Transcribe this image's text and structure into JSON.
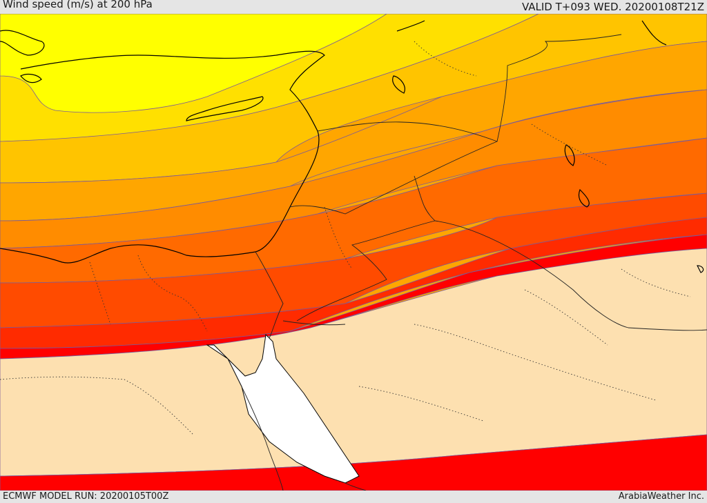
{
  "header": {
    "title": "Wind speed (m/s) at 200 hPa",
    "valid": "VALID T+093 WED. 20200108T21Z"
  },
  "footer": {
    "model_run": "ECMWF MODEL RUN: 20200105T00Z",
    "credit": "ArabiaWeather Inc."
  },
  "map": {
    "field": "wind-speed-200hPa",
    "band_colors": [
      "#ffff00",
      "#ffe000",
      "#ffc400",
      "#ffa600",
      "#ff8c00",
      "#ff6a00",
      "#ff4b00",
      "#ff2b00",
      "#ff0000",
      "#fde0b0",
      "#ffffff"
    ],
    "contour_color": "#7a5a9a",
    "coast_color": "#000000",
    "border_color": "#333333"
  }
}
